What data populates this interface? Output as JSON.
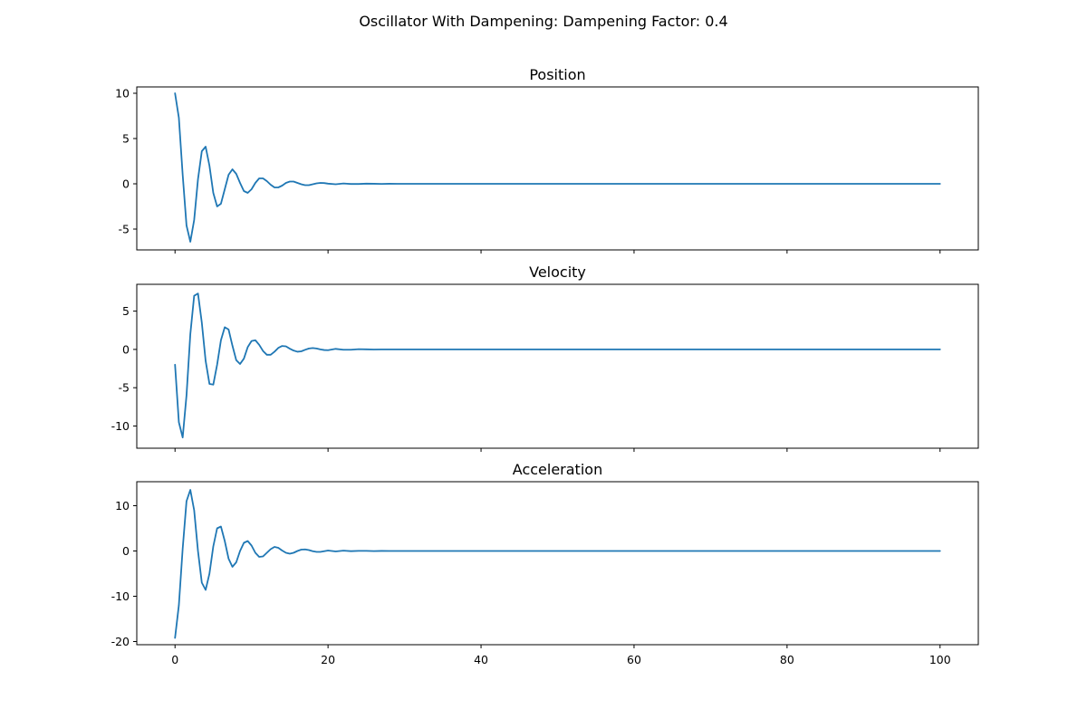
{
  "figure_title": "Oscillator With Dampening: Dampening Factor: 0.4",
  "line_color": "#1f77b4",
  "chart_data": [
    {
      "type": "line",
      "title": "Position",
      "xlabel": "",
      "ylabel": "",
      "xlim": [
        -5,
        105
      ],
      "ylim": [
        -7.3,
        10.7
      ],
      "yticks": [
        -5,
        0,
        5,
        10
      ],
      "xticks": [
        0,
        20,
        40,
        60,
        80,
        100
      ],
      "show_xtick_labels": false,
      "grid": false,
      "series": [
        {
          "x": [
            0,
            0.5,
            1,
            1.5,
            2,
            2.5,
            3,
            3.5,
            4,
            4.5,
            5,
            5.5,
            6,
            6.5,
            7,
            7.5,
            8,
            8.5,
            9,
            9.5,
            10,
            10.5,
            11,
            11.5,
            12,
            12.5,
            13,
            13.5,
            14,
            14.5,
            15,
            15.5,
            16,
            16.5,
            17,
            17.5,
            18,
            18.5,
            19,
            19.5,
            20,
            21,
            22,
            23,
            24,
            25,
            26,
            27,
            28,
            29,
            30,
            32,
            34,
            36,
            38,
            40,
            45,
            50,
            60,
            70,
            80,
            90,
            100
          ],
          "values": [
            10,
            7.3,
            1.0,
            -4.6,
            -6.4,
            -4.0,
            0.5,
            3.6,
            4.1,
            2.0,
            -1.0,
            -2.5,
            -2.2,
            -0.6,
            1.0,
            1.6,
            1.1,
            0.1,
            -0.8,
            -1.0,
            -0.6,
            0.1,
            0.6,
            0.6,
            0.3,
            -0.1,
            -0.4,
            -0.4,
            -0.2,
            0.1,
            0.25,
            0.25,
            0.1,
            -0.05,
            -0.15,
            -0.15,
            -0.05,
            0.05,
            0.1,
            0.08,
            0.02,
            -0.05,
            0.04,
            -0.02,
            -0.02,
            0.02,
            0.005,
            -0.01,
            0.005,
            0.003,
            -0.003,
            0.002,
            -0.001,
            0,
            0,
            0,
            0,
            0,
            0,
            0,
            0,
            0,
            0
          ]
        }
      ]
    },
    {
      "type": "line",
      "title": "Velocity",
      "xlabel": "",
      "ylabel": "",
      "xlim": [
        -5,
        105
      ],
      "ylim": [
        -12.9,
        8.5
      ],
      "yticks": [
        -10,
        -5,
        0,
        5
      ],
      "xticks": [
        0,
        20,
        40,
        60,
        80,
        100
      ],
      "show_xtick_labels": false,
      "grid": false,
      "series": [
        {
          "x": [
            0,
            0.5,
            1,
            1.5,
            2,
            2.5,
            3,
            3.5,
            4,
            4.5,
            5,
            5.5,
            6,
            6.5,
            7,
            7.5,
            8,
            8.5,
            9,
            9.5,
            10,
            10.5,
            11,
            11.5,
            12,
            12.5,
            13,
            13.5,
            14,
            14.5,
            15,
            15.5,
            16,
            16.5,
            17,
            17.5,
            18,
            18.5,
            19,
            19.5,
            20,
            21,
            22,
            23,
            24,
            25,
            26,
            27,
            28,
            29,
            30,
            32,
            34,
            36,
            38,
            40,
            45,
            50,
            60,
            70,
            80,
            90,
            100
          ],
          "values": [
            -2,
            -9.5,
            -11.5,
            -6.0,
            2.0,
            7.0,
            7.3,
            3.5,
            -1.5,
            -4.5,
            -4.6,
            -2.0,
            1.2,
            2.9,
            2.6,
            0.5,
            -1.4,
            -1.9,
            -1.2,
            0.3,
            1.1,
            1.2,
            0.6,
            -0.2,
            -0.7,
            -0.7,
            -0.3,
            0.2,
            0.45,
            0.4,
            0.1,
            -0.15,
            -0.3,
            -0.25,
            -0.05,
            0.12,
            0.18,
            0.12,
            0.0,
            -0.08,
            -0.1,
            0.07,
            -0.04,
            -0.04,
            0.03,
            0.01,
            -0.01,
            0.005,
            0.003,
            -0.002,
            0.001,
            0,
            0,
            0,
            0,
            0,
            0,
            0,
            0,
            0,
            0,
            0,
            0
          ]
        }
      ]
    },
    {
      "type": "line",
      "title": "Acceleration",
      "xlabel": "",
      "ylabel": "",
      "xlim": [
        -5,
        105
      ],
      "ylim": [
        -20.7,
        15.3
      ],
      "yticks": [
        -20,
        -10,
        0,
        10
      ],
      "xticks": [
        0,
        20,
        40,
        60,
        80,
        100
      ],
      "show_xtick_labels": true,
      "grid": false,
      "series": [
        {
          "x": [
            0,
            0.5,
            1,
            1.5,
            2,
            2.5,
            3,
            3.5,
            4,
            4.5,
            5,
            5.5,
            6,
            6.5,
            7,
            7.5,
            8,
            8.5,
            9,
            9.5,
            10,
            10.5,
            11,
            11.5,
            12,
            12.5,
            13,
            13.5,
            14,
            14.5,
            15,
            15.5,
            16,
            16.5,
            17,
            17.5,
            18,
            18.5,
            19,
            19.5,
            20,
            21,
            22,
            23,
            24,
            25,
            26,
            27,
            28,
            29,
            30,
            32,
            34,
            36,
            38,
            40,
            45,
            50,
            60,
            70,
            80,
            90,
            100
          ],
          "values": [
            -19.2,
            -12.0,
            0.5,
            11.0,
            13.5,
            9.0,
            0.0,
            -7.0,
            -8.6,
            -5.0,
            1.0,
            5.0,
            5.4,
            2.2,
            -1.7,
            -3.5,
            -2.5,
            0.0,
            1.8,
            2.2,
            1.2,
            -0.4,
            -1.3,
            -1.2,
            -0.4,
            0.4,
            0.9,
            0.7,
            0.1,
            -0.4,
            -0.6,
            -0.4,
            0.0,
            0.3,
            0.35,
            0.2,
            -0.05,
            -0.2,
            -0.2,
            -0.05,
            0.1,
            -0.1,
            0.08,
            -0.04,
            0.02,
            0.03,
            -0.02,
            0.01,
            0.005,
            -0.005,
            0.002,
            0,
            0,
            0,
            0,
            0,
            0,
            0,
            0,
            0,
            0,
            0,
            0
          ]
        }
      ]
    }
  ]
}
